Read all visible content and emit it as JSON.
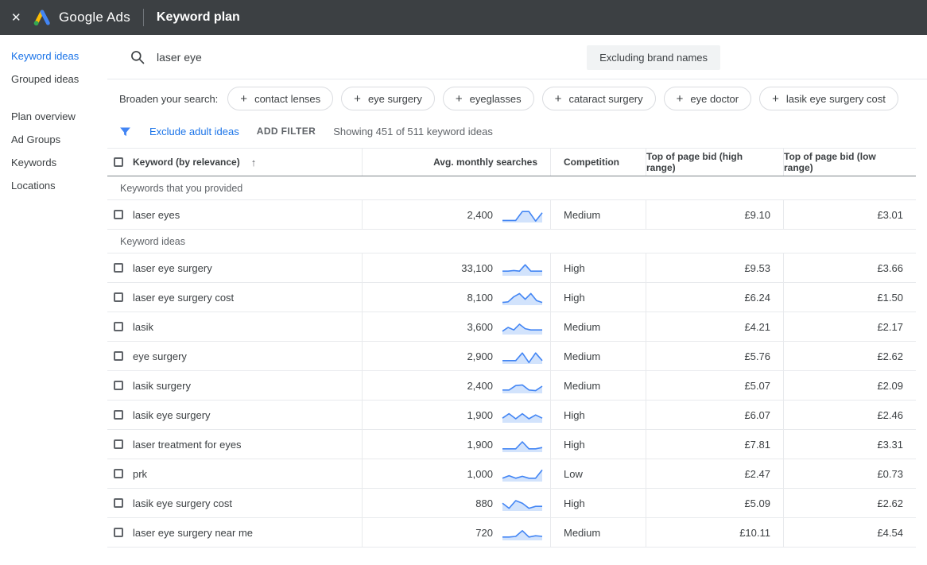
{
  "topbar": {
    "brand": "Google Ads",
    "page_title": "Keyword plan"
  },
  "icons": {
    "close": "✕",
    "plus": "+",
    "sort_ascending": "↑",
    "search": "magnifier",
    "filter": "funnel",
    "logo": "google-ads-triangle"
  },
  "sidebar": {
    "groups": [
      {
        "items": [
          {
            "label": "Keyword ideas",
            "active": true
          },
          {
            "label": "Grouped ideas",
            "active": false
          }
        ]
      },
      {
        "items": [
          {
            "label": "Plan overview",
            "active": false
          },
          {
            "label": "Ad Groups",
            "active": false
          },
          {
            "label": "Keywords",
            "active": false
          },
          {
            "label": "Locations",
            "active": false
          }
        ]
      }
    ]
  },
  "search": {
    "query": "laser eye",
    "excluding_label": "Excluding brand names"
  },
  "broaden": {
    "label": "Broaden your search:",
    "chips": [
      "contact lenses",
      "eye surgery",
      "eyeglasses",
      "cataract surgery",
      "eye doctor",
      "lasik eye surgery cost"
    ]
  },
  "filter_bar": {
    "exclude_adult_label": "Exclude adult ideas",
    "add_filter_label": "ADD FILTER",
    "showing_text": "Showing 451 of 511 keyword ideas"
  },
  "table": {
    "columns": {
      "keyword": "Keyword (by relevance)",
      "searches": "Avg. monthly searches",
      "competition": "Competition",
      "high_bid": "Top of page bid (high range)",
      "low_bid": "Top of page bid (low range)"
    },
    "groups": [
      {
        "section": "Keywords that you provided",
        "rows": [
          {
            "keyword": "laser eyes",
            "searches": "2,400",
            "competition": "Medium",
            "high_bid": "£9.10",
            "low_bid": "£3.01",
            "spark": [
              1,
              1,
              1,
              8,
              8,
              0.5,
              7
            ]
          }
        ]
      },
      {
        "section": "Keyword ideas",
        "rows": [
          {
            "keyword": "laser eye surgery",
            "searches": "33,100",
            "competition": "High",
            "high_bid": "£9.53",
            "low_bid": "£3.66",
            "spark": [
              3,
              3,
              3.5,
              3,
              8,
              3,
              3,
              3
            ]
          },
          {
            "keyword": "laser eye surgery cost",
            "searches": "8,100",
            "competition": "High",
            "high_bid": "£6.24",
            "low_bid": "£1.50",
            "spark": [
              1.5,
              2,
              6,
              8.5,
              4,
              8.5,
              3,
              1.5
            ]
          },
          {
            "keyword": "lasik",
            "searches": "3,600",
            "competition": "Medium",
            "high_bid": "£4.21",
            "low_bid": "£2.17",
            "spark": [
              2,
              5,
              3,
              7.5,
              4,
              3,
              3,
              3
            ]
          },
          {
            "keyword": "eye surgery",
            "searches": "2,900",
            "competition": "Medium",
            "high_bid": "£5.76",
            "low_bid": "£2.62",
            "spark": [
              2,
              2,
              2,
              8,
              0.5,
              8,
              2
            ]
          },
          {
            "keyword": "lasik surgery",
            "searches": "2,400",
            "competition": "Medium",
            "high_bid": "£5.07",
            "low_bid": "£2.09",
            "spark": [
              2,
              2,
              5.5,
              6,
              2,
              1.5,
              5
            ]
          },
          {
            "keyword": "lasik eye surgery",
            "searches": "1,900",
            "competition": "High",
            "high_bid": "£6.07",
            "low_bid": "£2.46",
            "spark": [
              3,
              6.5,
              2.5,
              6.5,
              2.5,
              5.5,
              3
            ]
          },
          {
            "keyword": "laser treatment for eyes",
            "searches": "1,900",
            "competition": "High",
            "high_bid": "£7.81",
            "low_bid": "£3.31",
            "spark": [
              2,
              2,
              2,
              7.5,
              2,
              2,
              3
            ]
          },
          {
            "keyword": "prk",
            "searches": "1,000",
            "competition": "Low",
            "high_bid": "£2.47",
            "low_bid": "£0.73",
            "spark": [
              2,
              4,
              2,
              3.5,
              2,
              2,
              8.5
            ]
          },
          {
            "keyword": "lasik eye surgery cost",
            "searches": "880",
            "competition": "High",
            "high_bid": "£5.09",
            "low_bid": "£2.62",
            "spark": [
              5.5,
              1.5,
              7.5,
              5.5,
              1.5,
              3,
              3
            ]
          },
          {
            "keyword": "laser eye surgery near me",
            "searches": "720",
            "competition": "Medium",
            "high_bid": "£10.11",
            "low_bid": "£4.54",
            "spark": [
              2,
              2,
              2.5,
              7,
              2,
              3,
              2.5
            ]
          }
        ]
      }
    ]
  },
  "colors": {
    "accent": "#1a73e8",
    "spark_line": "#4285f4",
    "spark_fill": "#d2e3fc",
    "topbar_bg": "#3c4043",
    "logo_yellow": "#fbbc04",
    "logo_blue": "#4285f4",
    "logo_green": "#34a853"
  }
}
